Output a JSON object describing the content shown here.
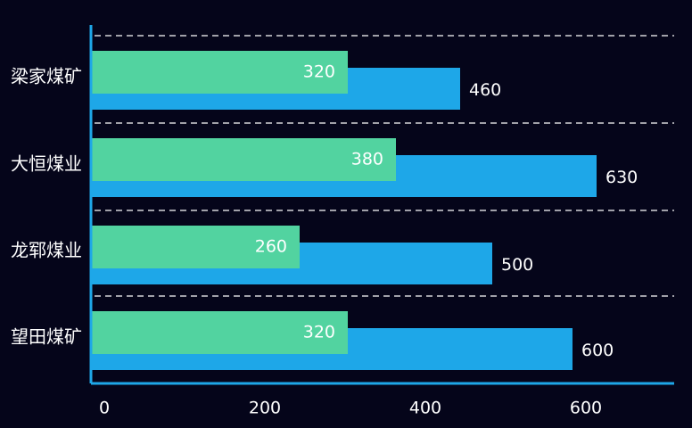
{
  "chart_data": {
    "type": "bar",
    "orientation": "horizontal",
    "categories": [
      "梁家煤矿",
      "大恒煤业",
      "龙郓煤业",
      "望田煤矿"
    ],
    "series": [
      {
        "values": [
          460,
          630,
          500,
          600
        ],
        "color": "#1ea7e8"
      },
      {
        "values": [
          320,
          380,
          260,
          320
        ],
        "color": "#52d3a0"
      }
    ],
    "x_ticks": [
      "0",
      "200",
      "400",
      "600"
    ],
    "xlim": [
      0,
      720
    ],
    "grid": "dashed-horizontal",
    "colors": {
      "background": "#05051a",
      "axis": "#1ea7e8",
      "grid": "#ffffff",
      "text": "#ffffff"
    }
  }
}
